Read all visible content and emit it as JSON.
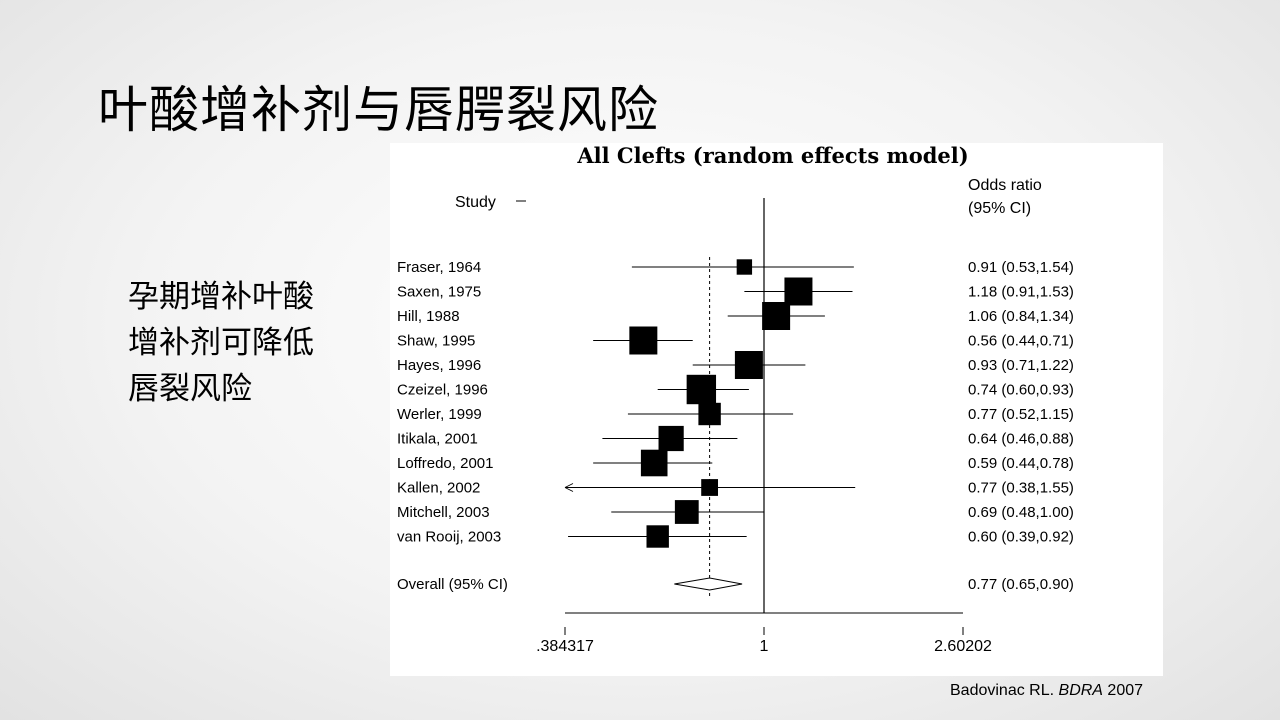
{
  "slide": {
    "title": "叶酸增补剂与唇腭裂风险",
    "bullet_lines": [
      "孕期增补叶酸",
      "增补剂可降低",
      "唇裂风险"
    ],
    "citation_author": "Badovinac RL. ",
    "citation_journal": "BDRA",
    "citation_year": " 2007"
  },
  "chart_data": {
    "type": "forest",
    "title": "All Clefts (random effects model)",
    "study_header": "Study",
    "or_header_line1": "Odds ratio",
    "or_header_line2": "(95% CI)",
    "x_scale": "log",
    "x_range": [
      0.384317,
      2.60202
    ],
    "x_tick_labels": [
      ".384317",
      "1",
      "2.60202"
    ],
    "reference_line": 1,
    "pooled_line": 0.77,
    "studies": [
      {
        "label": "Fraser, 1964",
        "or": 0.91,
        "lo": 0.53,
        "hi": 1.54,
        "ci_text": "0.91 (0.53,1.54)",
        "weight": 0.55
      },
      {
        "label": "Saxen, 1975",
        "or": 1.18,
        "lo": 0.91,
        "hi": 1.53,
        "ci_text": "1.18 (0.91,1.53)",
        "weight": 1.0
      },
      {
        "label": "Hill, 1988",
        "or": 1.06,
        "lo": 0.84,
        "hi": 1.34,
        "ci_text": "1.06 (0.84,1.34)",
        "weight": 1.0
      },
      {
        "label": "Shaw, 1995",
        "or": 0.56,
        "lo": 0.44,
        "hi": 0.71,
        "ci_text": "0.56 (0.44,0.71)",
        "weight": 1.0
      },
      {
        "label": "Hayes, 1996",
        "or": 0.93,
        "lo": 0.71,
        "hi": 1.22,
        "ci_text": "0.93 (0.71,1.22)",
        "weight": 1.0
      },
      {
        "label": "Czeizel, 1996",
        "or": 0.74,
        "lo": 0.6,
        "hi": 0.93,
        "ci_text": "0.74 (0.60,0.93)",
        "weight": 1.05
      },
      {
        "label": "Werler, 1999",
        "or": 0.77,
        "lo": 0.52,
        "hi": 1.15,
        "ci_text": "0.77 (0.52,1.15)",
        "weight": 0.8
      },
      {
        "label": "Itikala, 2001",
        "or": 0.64,
        "lo": 0.46,
        "hi": 0.88,
        "ci_text": "0.64 (0.46,0.88)",
        "weight": 0.9
      },
      {
        "label": "Loffredo, 2001",
        "or": 0.59,
        "lo": 0.44,
        "hi": 0.78,
        "ci_text": "0.59 (0.44,0.78)",
        "weight": 0.95
      },
      {
        "label": "Kallen, 2002",
        "or": 0.77,
        "lo": 0.38,
        "hi": 1.55,
        "ci_text": "0.77 (0.38,1.55)",
        "weight": 0.6
      },
      {
        "label": "Mitchell, 2003",
        "or": 0.69,
        "lo": 0.48,
        "hi": 1.0,
        "ci_text": "0.69 (0.48,1.00)",
        "weight": 0.85
      },
      {
        "label": "van Rooij, 2003",
        "or": 0.6,
        "lo": 0.39,
        "hi": 0.92,
        "ci_text": "0.60 (0.39,0.92)",
        "weight": 0.8
      }
    ],
    "overall": {
      "label": "Overall (95% CI)",
      "or": 0.77,
      "lo": 0.65,
      "hi": 0.9,
      "ci_text": "0.77 (0.65,0.90)"
    }
  }
}
